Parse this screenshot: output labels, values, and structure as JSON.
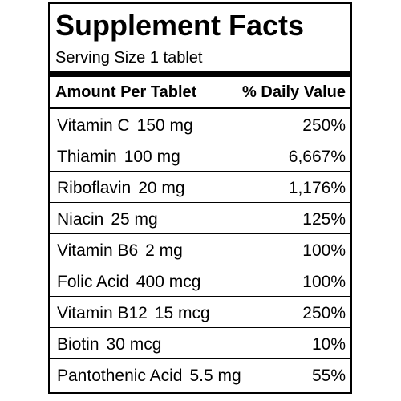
{
  "panel": {
    "title": "Supplement Facts",
    "serving_size": "Serving Size 1 tablet",
    "header": {
      "amount": "Amount Per Tablet",
      "daily_value": "% Daily Value"
    },
    "rows": [
      {
        "nutrient": "Vitamin C",
        "amount": "150 mg",
        "dv": "250%"
      },
      {
        "nutrient": "Thiamin",
        "amount": "100 mg",
        "dv": "6,667%"
      },
      {
        "nutrient": "Riboflavin",
        "amount": "20 mg",
        "dv": "1,176%"
      },
      {
        "nutrient": "Niacin",
        "amount": "25 mg",
        "dv": "125%"
      },
      {
        "nutrient": "Vitamin B6",
        "amount": "2 mg",
        "dv": "100%"
      },
      {
        "nutrient": "Folic Acid",
        "amount": "400 mcg",
        "dv": "100%"
      },
      {
        "nutrient": "Vitamin B12",
        "amount": "15 mcg",
        "dv": "250%"
      },
      {
        "nutrient": "Biotin",
        "amount": "30 mcg",
        "dv": "10%"
      },
      {
        "nutrient": "Pantothenic Acid",
        "amount": "5.5 mg",
        "dv": "55%"
      }
    ]
  }
}
